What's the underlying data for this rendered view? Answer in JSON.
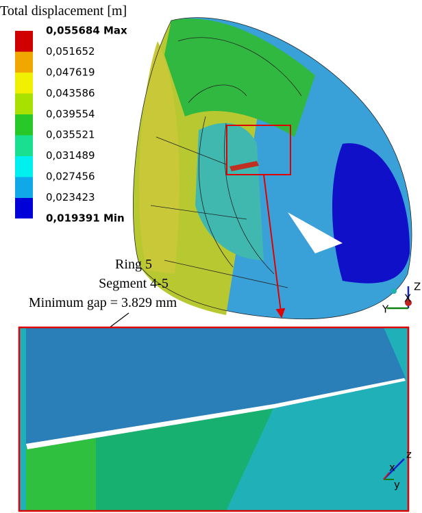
{
  "legend": {
    "title": "Total displacement [m]",
    "labels": [
      "0,055684 Max",
      "0,051652",
      "0,047619",
      "0,043586",
      "0,039554",
      "0,035521",
      "0,031489",
      "0,027456",
      "0,023423",
      "0,019391 Min"
    ]
  },
  "annotation": {
    "lines": [
      "Ring 5",
      "Segment 4-5",
      "Minimum gap = 3.829 mm"
    ]
  },
  "triad_main": {
    "z": "Z",
    "y": "Y",
    "x": "X"
  },
  "triad_detail": {
    "z": "z",
    "y": "y",
    "x": "x"
  }
}
